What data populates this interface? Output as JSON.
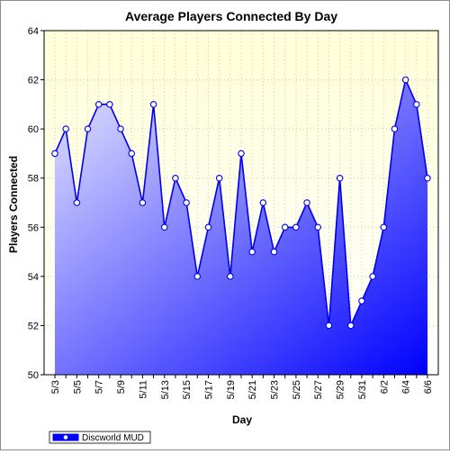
{
  "chart_data": {
    "type": "area",
    "title": "Average Players Connected By Day",
    "xlabel": "Day",
    "ylabel": "Players Connected",
    "ylim": [
      50,
      64
    ],
    "yticks": [
      50,
      52,
      54,
      56,
      58,
      60,
      62,
      64
    ],
    "grid": true,
    "legend_position": "bottom-left",
    "x": [
      "5/3",
      "5/4",
      "5/5",
      "5/6",
      "5/7",
      "5/8",
      "5/9",
      "5/10",
      "5/11",
      "5/12",
      "5/13",
      "5/14",
      "5/15",
      "5/16",
      "5/17",
      "5/18",
      "5/19",
      "5/20",
      "5/21",
      "5/22",
      "5/23",
      "5/24",
      "5/25",
      "5/26",
      "5/27",
      "5/28",
      "5/29",
      "5/30",
      "5/31",
      "6/1",
      "6/2",
      "6/3",
      "6/4",
      "6/5",
      "6/6"
    ],
    "x_tick_labels": [
      "5/3",
      "5/5",
      "5/7",
      "5/9",
      "5/11",
      "5/13",
      "5/15",
      "5/17",
      "5/19",
      "5/21",
      "5/23",
      "5/25",
      "5/27",
      "5/29",
      "5/31",
      "6/2",
      "6/4",
      "6/6"
    ],
    "series": [
      {
        "name": "Discworld MUD",
        "values": [
          59,
          60,
          57,
          60,
          61,
          61,
          60,
          59,
          57,
          61,
          56,
          58,
          57,
          54,
          56,
          58,
          54,
          59,
          55,
          57,
          55,
          56,
          56,
          57,
          56,
          52,
          58,
          52,
          53,
          54,
          56,
          60,
          62,
          61,
          58
        ]
      }
    ],
    "colors": {
      "line": "#0000ee",
      "fill_start": "#e6e6ff",
      "fill_end": "#0000ff",
      "plot_bg_top": "#ffffd8",
      "plot_bg_bottom": "#ffffff",
      "grid": "#c8c8b4",
      "marker_fill": "#ffffff"
    }
  }
}
